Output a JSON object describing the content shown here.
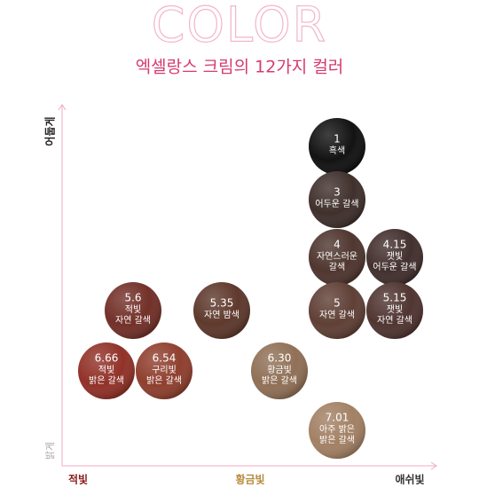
{
  "header": {
    "title": "COLOR",
    "subtitle": "엑셀랑스 크림의 12가지 컬러"
  },
  "axes": {
    "y_top": "어둡게",
    "y_bottom": "밝게",
    "x_left": "적빛",
    "x_mid": "황금빛",
    "x_right": "애쉬빛"
  },
  "swatches": [
    {
      "code": "1",
      "name": [
        "흑색"
      ]
    },
    {
      "code": "3",
      "name": [
        "어두운 갈색"
      ]
    },
    {
      "code": "4",
      "name": [
        "자연스러운",
        "갈색"
      ]
    },
    {
      "code": "4.15",
      "name": [
        "잿빛",
        "어두운 갈색"
      ]
    },
    {
      "code": "5.6",
      "name": [
        "적빛",
        "자연 갈색"
      ]
    },
    {
      "code": "5.35",
      "name": [
        "자연 밤색"
      ]
    },
    {
      "code": "5",
      "name": [
        "자연 갈색"
      ]
    },
    {
      "code": "5.15",
      "name": [
        "잿빛",
        "자연 갈색"
      ]
    },
    {
      "code": "6.66",
      "name": [
        "적빛",
        "밝은 갈색"
      ]
    },
    {
      "code": "6.54",
      "name": [
        "구리빛",
        "밝은 갈색"
      ]
    },
    {
      "code": "6.30",
      "name": [
        "황금빛",
        "밝은 갈색"
      ]
    },
    {
      "code": "7.01",
      "name": [
        "아주 밝은",
        "밝은 갈색"
      ]
    }
  ]
}
